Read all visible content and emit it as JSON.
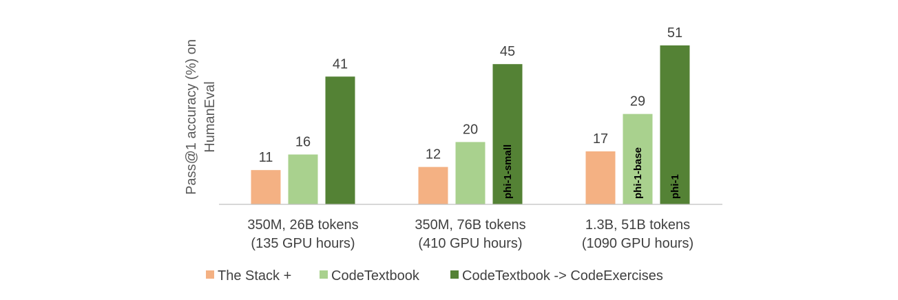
{
  "chart_data": {
    "type": "bar",
    "categories": [
      [
        "350M, 26B tokens",
        "(135 GPU hours)"
      ],
      [
        "350M, 76B tokens",
        "(410 GPU hours)"
      ],
      [
        "1.3B, 51B tokens",
        "(1090 GPU hours)"
      ]
    ],
    "series": [
      {
        "name": "The Stack +",
        "color": "#F4B183",
        "values": [
          11,
          12,
          17
        ],
        "bar_labels": [
          "",
          "",
          ""
        ]
      },
      {
        "name": "CodeTextbook",
        "color": "#A9D18E",
        "values": [
          16,
          20,
          29
        ],
        "bar_labels": [
          "",
          "",
          "phi-1-base"
        ]
      },
      {
        "name": "CodeTextbook -> CodeExercises",
        "color": "#548235",
        "values": [
          41,
          45,
          51
        ],
        "bar_labels": [
          "",
          "phi-1-small",
          "phi-1"
        ]
      }
    ],
    "ylabel": [
      "Pass@1 accuracy (%) on",
      "HumanEval"
    ],
    "ylim": [
      0,
      51
    ],
    "grid": false,
    "legend_position": "bottom"
  }
}
